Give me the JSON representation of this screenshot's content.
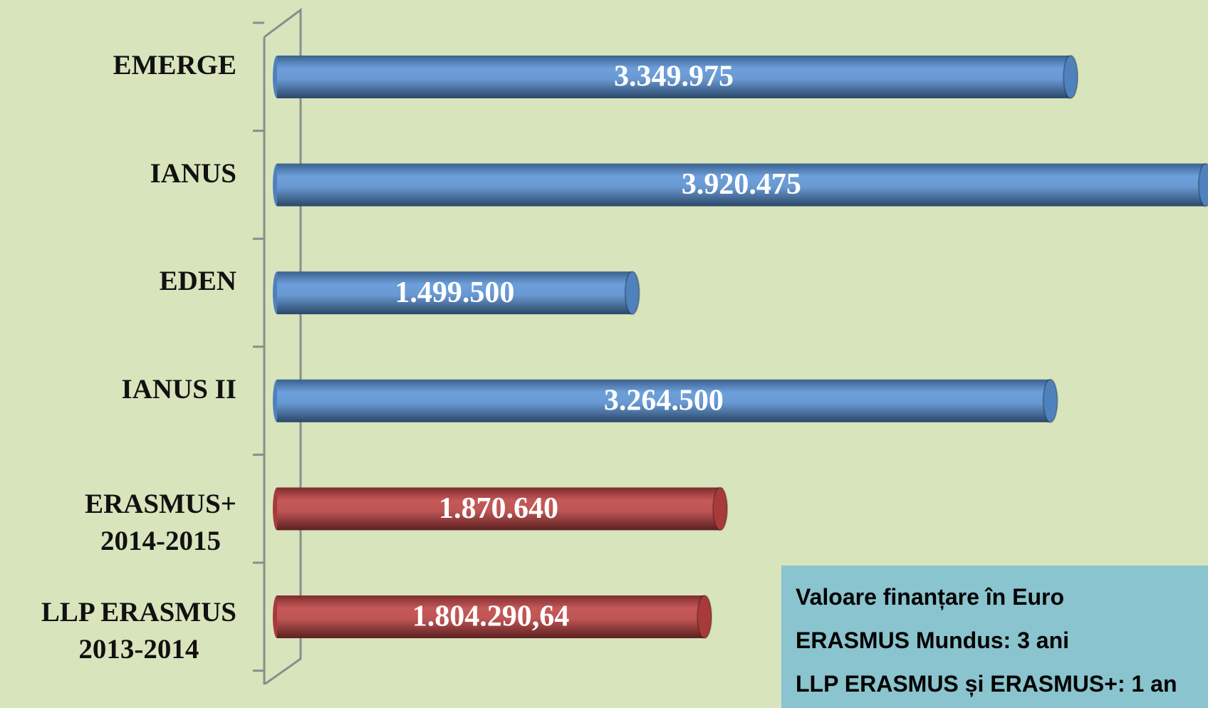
{
  "chart_data": {
    "type": "bar",
    "orientation": "horizontal",
    "categories": [
      "EMERGE",
      "IANUS",
      "EDEN",
      "IANUS II",
      "ERASMUS+\n2014-2015",
      "LLP ERASMUS\n2013-2014"
    ],
    "values": [
      3349975,
      3920475,
      1499500,
      3264500,
      1870640,
      1804290.64
    ],
    "value_labels": [
      "3.349.975",
      "3.920.475",
      "1.499.500",
      "3.264.500",
      "1.870.640",
      "1.804.290,64"
    ],
    "colors": [
      "#4f81bd",
      "#4f81bd",
      "#4f81bd",
      "#4f81bd",
      "#a83a3a",
      "#a83a3a"
    ],
    "xlim": [
      0,
      3930000
    ],
    "annotations": [
      "Valoare finanțare în Euro",
      "ERASMUS Mundus: 3 ani",
      "LLP ERASMUS și ERASMUS+: 1 an"
    ]
  }
}
